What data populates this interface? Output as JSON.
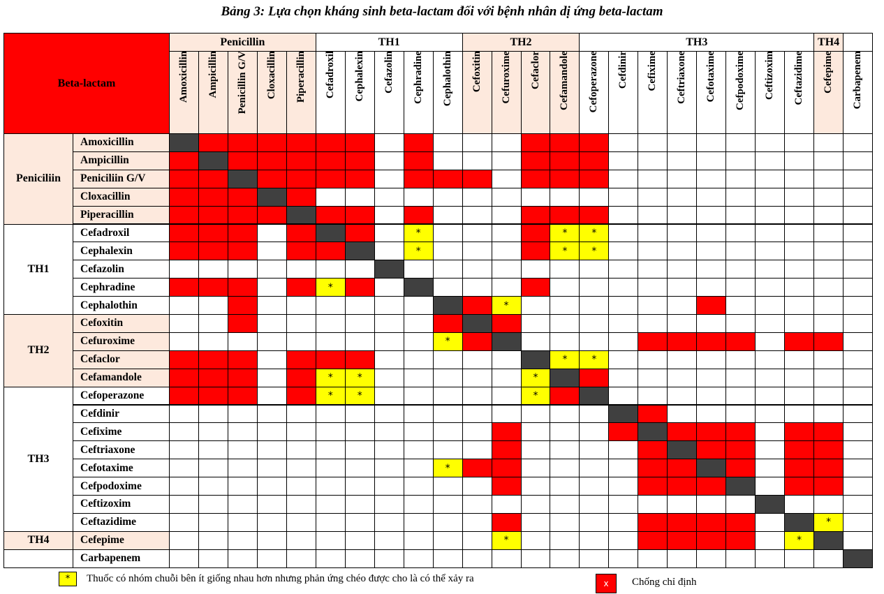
{
  "title": "Bảng 3: Lựa chọn kháng sinh beta-lactam đối với bệnh nhân dị ứng beta-lactam",
  "corner_label": "Beta-lactam",
  "col_groups": [
    {
      "label": "Penicillin",
      "span": 5,
      "shade": true
    },
    {
      "label": "TH1",
      "span": 5,
      "shade": false
    },
    {
      "label": "TH2",
      "span": 4,
      "shade": true
    },
    {
      "label": "TH3",
      "span": 8,
      "shade": false
    },
    {
      "label": "TH4",
      "span": 1,
      "shade": true
    },
    {
      "label": "",
      "span": 1,
      "shade": false
    }
  ],
  "columns": [
    "Amoxicillin",
    "Ampicillin",
    "Penicillin G/V",
    "Cloxacillin",
    "Piperacillin",
    "Cefadroxil",
    "Cephalexin",
    "Cefazolin",
    "Cephradine",
    "Cephalothin",
    "Cefoxitin",
    "Cefuroxime",
    "Cefaclor",
    "Cefamandole",
    "Cefoperazone",
    "Cefdinir",
    "Cefixime",
    "Ceftriaxone",
    "Cefotaxime",
    "Cefpodoxime",
    "Ceftizoxim",
    "Ceftazidime",
    "Cefepime",
    "Carbapenem"
  ],
  "row_groups": [
    {
      "label": "Peniciliin",
      "span": 5,
      "shade": true
    },
    {
      "label": "TH1",
      "span": 5,
      "shade": false
    },
    {
      "label": "TH2",
      "span": 4,
      "shade": true
    },
    {
      "label": "TH3",
      "span": 8,
      "shade": false
    },
    {
      "label": "TH4",
      "span": 1,
      "shade": true
    },
    {
      "label": "",
      "span": 1,
      "shade": false
    }
  ],
  "rows": [
    {
      "label": "Amoxicillin",
      "cells": "DXXXXXX.X...XXX........."
    },
    {
      "label": "Ampicillin",
      "cells": "XDXXXXX.X...XXX........."
    },
    {
      "label": "Peniciliin G/V",
      "cells": "XXDXXXX.XXX.XXX........."
    },
    {
      "label": "Cloxacillin",
      "cells": "XXXDX..................."
    },
    {
      "label": "Piperacillin",
      "cells": "XXXXDXX.X...XXX........."
    },
    {
      "label": "Cefadroxil",
      "cells": "XXX.XDX.*...X**........."
    },
    {
      "label": "Cephalexin",
      "cells": "XXX.XXD.*...X**........."
    },
    {
      "label": "Cefazolin",
      "cells": ".......D................"
    },
    {
      "label": "Cephradine",
      "cells": "XXX.X*X.D...X..........."
    },
    {
      "label": "Cephalothin",
      "cells": "..X......DX*......X....."
    },
    {
      "label": "Cefoxitin",
      "cells": "..X......XDX............"
    },
    {
      "label": "Cefuroxime",
      "cells": ".........*XD....XXXX.XX."
    },
    {
      "label": "Cefaclor",
      "cells": "XXX.XXX.....D**........."
    },
    {
      "label": "Cefamandole",
      "cells": "XXX.X**.....*DX........."
    },
    {
      "label": "Cefoperazone",
      "cells": "XXX.X**.....*XD........."
    },
    {
      "label": "Cefdinir",
      "cells": "...............DX......."
    },
    {
      "label": "Cefixime",
      "cells": "...........X...XDXXX.XX."
    },
    {
      "label": "Ceftriaxone",
      "cells": "...........X....XDXX.XX."
    },
    {
      "label": "Cefotaxime",
      "cells": ".........*XX....XXDX.XX."
    },
    {
      "label": "Cefpodoxime",
      "cells": "...........X....XXXD.XX."
    },
    {
      "label": "Ceftizoxim",
      "cells": "....................D..."
    },
    {
      "label": "Ceftazidime",
      "cells": "...........X....XXXX.D*."
    },
    {
      "label": "Cefepime",
      "cells": "...........*....XXXX.*D."
    },
    {
      "label": "Carbapenem",
      "cells": ".......................D"
    }
  ],
  "cell_mark_text": "*",
  "colors": {
    "contraindicated": "#ff0000",
    "diagonal": "#404040",
    "possible": "#ffff00",
    "group_shade": "#fde9dd"
  },
  "legend": {
    "possible_symbol": "*",
    "possible_text": "Thuốc có nhóm chuỗi bên ít giống nhau hơn nhưng phản ứng chéo được cho là có thể xảy ra",
    "contra_symbol": "x",
    "contra_text": "Chống chỉ định"
  }
}
